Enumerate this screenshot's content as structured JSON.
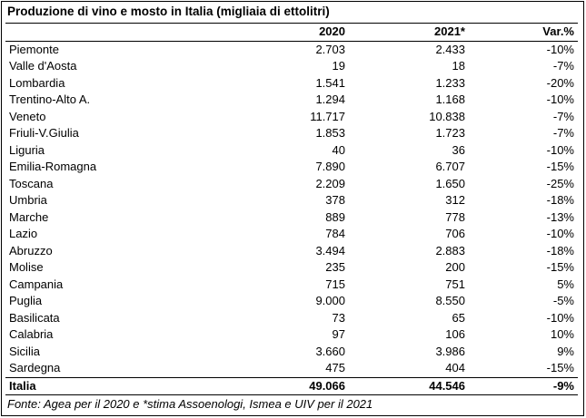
{
  "title": "Produzione di vino e mosto in Italia (migliaia di ettolitri)",
  "columns": {
    "region": "",
    "y2020": "2020",
    "y2021": "2021*",
    "var": "Var.%"
  },
  "rows": [
    {
      "region": "Piemonte",
      "y2020": "2.703",
      "y2021": "2.433",
      "var": "-10%"
    },
    {
      "region": "Valle d'Aosta",
      "y2020": "19",
      "y2021": "18",
      "var": "-7%"
    },
    {
      "region": "Lombardia",
      "y2020": "1.541",
      "y2021": "1.233",
      "var": "-20%"
    },
    {
      "region": "Trentino-Alto A.",
      "y2020": "1.294",
      "y2021": "1.168",
      "var": "-10%"
    },
    {
      "region": "Veneto",
      "y2020": "11.717",
      "y2021": "10.838",
      "var": "-7%"
    },
    {
      "region": "Friuli-V.Giulia",
      "y2020": "1.853",
      "y2021": "1.723",
      "var": "-7%"
    },
    {
      "region": "Liguria",
      "y2020": "40",
      "y2021": "36",
      "var": "-10%"
    },
    {
      "region": "Emilia-Romagna",
      "y2020": "7.890",
      "y2021": "6.707",
      "var": "-15%"
    },
    {
      "region": "Toscana",
      "y2020": "2.209",
      "y2021": "1.650",
      "var": "-25%"
    },
    {
      "region": "Umbria",
      "y2020": "378",
      "y2021": "312",
      "var": "-18%"
    },
    {
      "region": "Marche",
      "y2020": "889",
      "y2021": "778",
      "var": "-13%"
    },
    {
      "region": "Lazio",
      "y2020": "784",
      "y2021": "706",
      "var": "-10%"
    },
    {
      "region": "Abruzzo",
      "y2020": "3.494",
      "y2021": "2.883",
      "var": "-18%"
    },
    {
      "region": "Molise",
      "y2020": "235",
      "y2021": "200",
      "var": "-15%"
    },
    {
      "region": "Campania",
      "y2020": "715",
      "y2021": "751",
      "var": "5%"
    },
    {
      "region": "Puglia",
      "y2020": "9.000",
      "y2021": "8.550",
      "var": "-5%"
    },
    {
      "region": "Basilicata",
      "y2020": "73",
      "y2021": "65",
      "var": "-10%"
    },
    {
      "region": "Calabria",
      "y2020": "97",
      "y2021": "106",
      "var": "10%"
    },
    {
      "region": "Sicilia",
      "y2020": "3.660",
      "y2021": "3.986",
      "var": "9%"
    },
    {
      "region": "Sardegna",
      "y2020": "475",
      "y2021": "404",
      "var": "-15%"
    }
  ],
  "total": {
    "region": "Italia",
    "y2020": "49.066",
    "y2021": "44.546",
    "var": "-9%"
  },
  "source": "Fonte: Agea per il 2020 e *stima Assoenologi, Ismea e UIV per il 2021"
}
